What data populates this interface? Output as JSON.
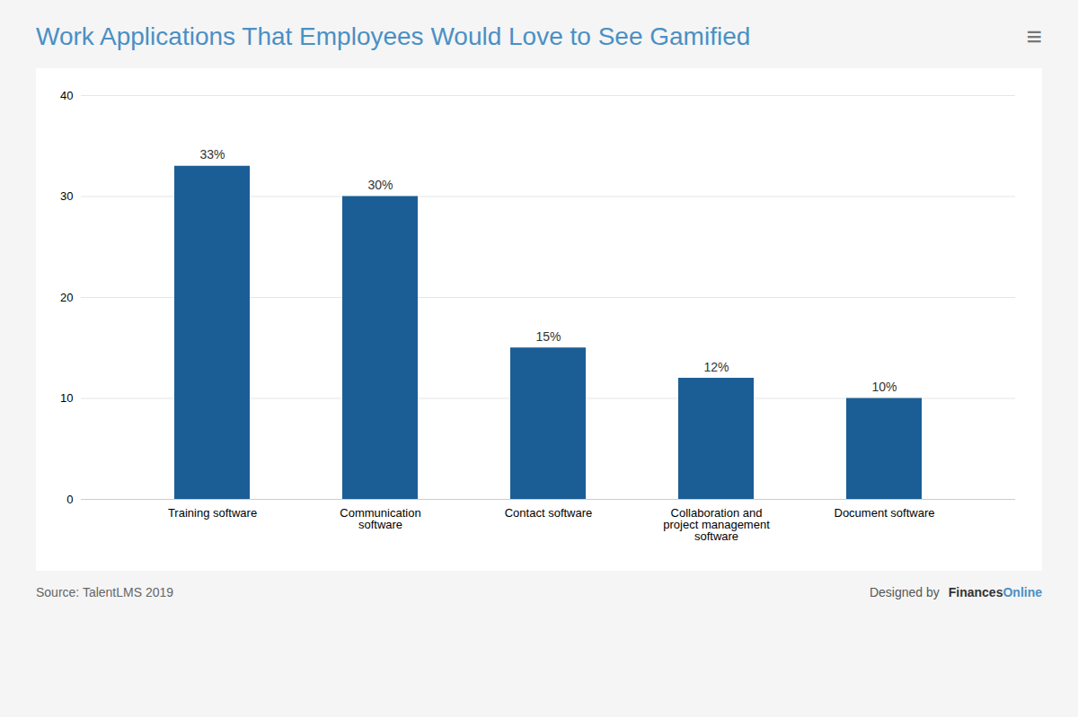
{
  "chart_data": {
    "type": "bar",
    "title": "Work Applications That Employees Would Love to See Gamified",
    "categories": [
      "Training software",
      "Communication\nsoftware",
      "Contact software",
      "Collaboration and\nproject management\nsoftware",
      "Document software"
    ],
    "values": [
      33,
      30,
      15,
      12,
      10
    ],
    "value_labels": [
      "33%",
      "30%",
      "15%",
      "12%",
      "10%"
    ],
    "data_labels": true,
    "color": "#1b5e96",
    "ylim": [
      0,
      40
    ],
    "yticks": [
      0,
      10,
      20,
      30,
      40
    ],
    "grid": true,
    "annotations": [
      "≡",
      "Source: TalentLMS 2019",
      "Designed by",
      "Finances",
      "Online"
    ]
  }
}
